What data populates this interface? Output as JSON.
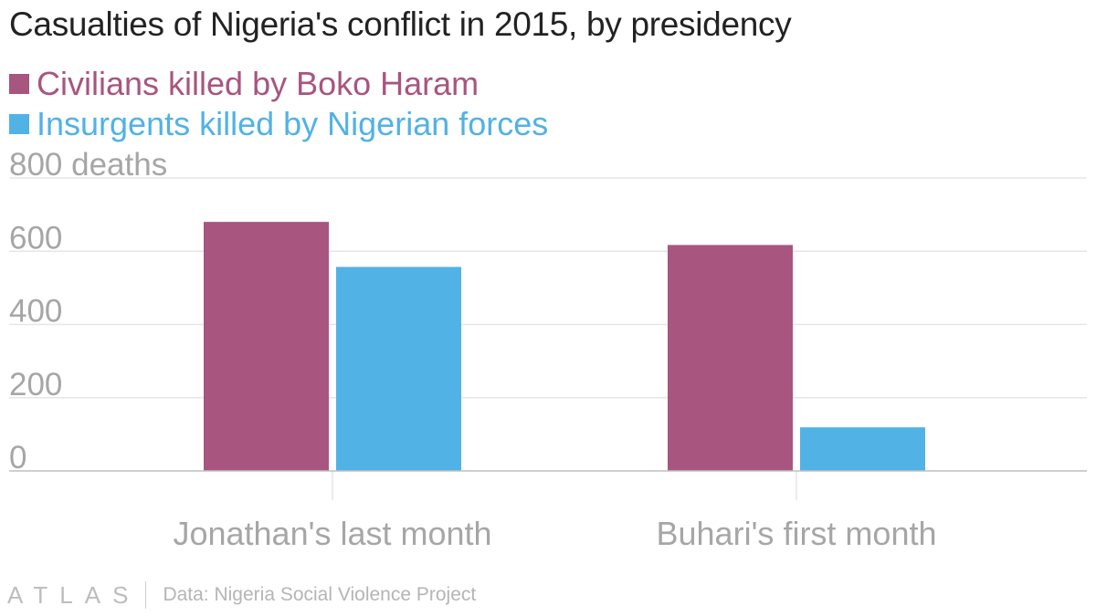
{
  "title": "Casualties of Nigeria's conflict in 2015, by presidency",
  "colors": {
    "civilians": "#a8557f",
    "insurgents": "#51b2e5",
    "grid": "#e6e6e6",
    "axis": "#bdbdbd",
    "tick_text": "#a6a6a6"
  },
  "chart_data": {
    "type": "bar",
    "title": "Casualties of Nigeria's conflict in 2015, by presidency",
    "categories": [
      "Jonathan's last month",
      "Buhari's first month"
    ],
    "series": [
      {
        "name": "Civilians killed by Boko Haram",
        "values": [
          680,
          617
        ]
      },
      {
        "name": "Insurgents killed by Nigerian forces",
        "values": [
          557,
          119
        ]
      }
    ],
    "ylim": [
      0,
      800
    ],
    "yticks": [
      0,
      200,
      400,
      600,
      800
    ],
    "ytick_labels": [
      "0",
      "200",
      "400",
      "600",
      "800 deaths"
    ],
    "grid": true,
    "legend": "top-left"
  },
  "footer": {
    "logo": "ATLAS",
    "source": "Data: Nigeria Social Violence Project"
  }
}
